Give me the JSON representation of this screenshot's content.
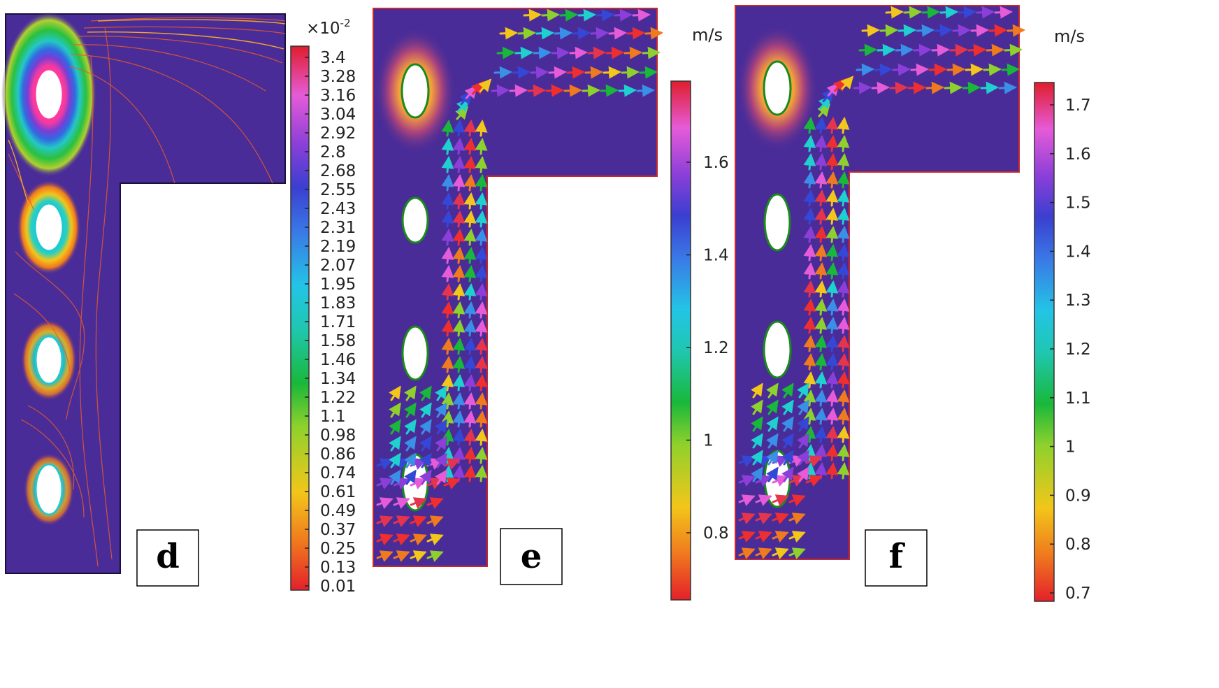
{
  "panels": [
    {
      "label": "d",
      "colorbar": {
        "exponent_base": "×10",
        "exponent_power": "-2",
        "unit": "",
        "ticks": [
          "3.4",
          "3.28",
          "3.16",
          "3.04",
          "2.92",
          "2.8",
          "2.68",
          "2.55",
          "2.43",
          "2.31",
          "2.19",
          "2.07",
          "1.95",
          "1.83",
          "1.71",
          "1.58",
          "1.46",
          "1.34",
          "1.22",
          "1.1",
          "0.98",
          "0.86",
          "0.74",
          "0.61",
          "0.49",
          "0.37",
          "0.25",
          "0.13",
          "0.01"
        ]
      }
    },
    {
      "label": "e",
      "colorbar": {
        "unit": "m/s",
        "ticks": [
          "1.6",
          "1.4",
          "1.2",
          "1",
          "0.8"
        ]
      }
    },
    {
      "label": "f",
      "colorbar": {
        "unit": "m/s",
        "ticks": [
          "1.7",
          "1.6",
          "1.5",
          "1.4",
          "1.3",
          "1.2",
          "1.1",
          "1",
          "0.9",
          "0.8",
          "0.7"
        ]
      }
    }
  ],
  "colors": {
    "background": "#4a2c98",
    "rainbow": [
      "#ef2f2f",
      "#f07a1e",
      "#f2c61a",
      "#8fd12c",
      "#19b83a",
      "#1fd0cf",
      "#3a8fe6",
      "#3547d6",
      "#8b3fd8",
      "#e65bd8",
      "#e5354d"
    ]
  }
}
